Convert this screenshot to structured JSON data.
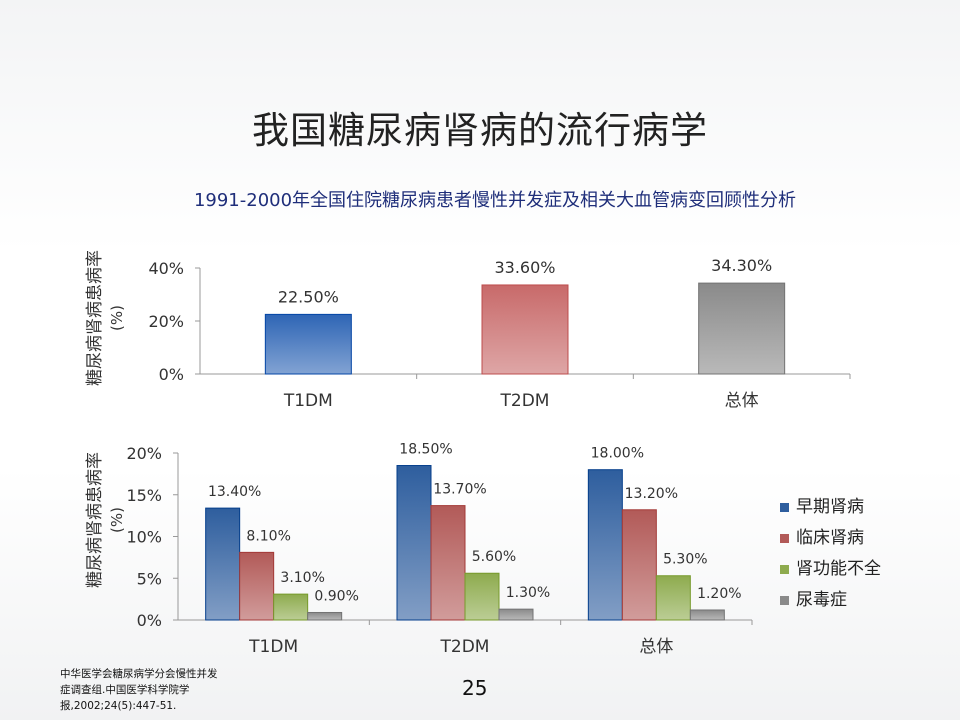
{
  "slide": {
    "title": "我国糖尿病肾病的流行病学",
    "subtitle": "1991-2000年全国住院糖尿病患者慢性并发症及相关大血管病变回顾性分析",
    "references": [
      "中华医学会糖尿病学分会慢性并发",
      "症调查组.中国医学科学院学",
      "报,2002;24(5):447-51."
    ],
    "page_number": "25"
  },
  "chart_data": [
    {
      "type": "bar",
      "ylabel": "糖尿病肾病患病率 (%)",
      "categories": [
        "T1DM",
        "T2DM",
        "总体"
      ],
      "values": [
        22.5,
        33.6,
        34.3
      ],
      "data_labels": [
        "22.50%",
        "33.60%",
        "34.30%"
      ],
      "yticks": [
        "0%",
        "20%",
        "40%"
      ],
      "ylim": [
        0,
        40
      ],
      "grid": false,
      "colors": [
        "#2e65b5",
        "#c86a6a",
        "#8a8a8a"
      ]
    },
    {
      "type": "bar",
      "ylabel": "糖尿病肾病患病率 (%)",
      "categories": [
        "T1DM",
        "T2DM",
        "总体"
      ],
      "series": [
        {
          "name": "早期肾病",
          "values": [
            13.4,
            18.5,
            18.0
          ],
          "labels": [
            "13.40%",
            "18.50%",
            "18.00%"
          ],
          "color": "#2e5e9e"
        },
        {
          "name": "临床肾病",
          "values": [
            8.1,
            13.7,
            13.2
          ],
          "labels": [
            "8.10%",
            "13.70%",
            "13.20%"
          ],
          "color": "#b25a58"
        },
        {
          "name": "肾功能不全",
          "values": [
            3.1,
            5.6,
            5.3
          ],
          "labels": [
            "3.10%",
            "5.60%",
            "5.30%"
          ],
          "color": "#8eab4e"
        },
        {
          "name": "尿毒症",
          "values": [
            0.9,
            1.3,
            1.2
          ],
          "labels": [
            "0.90%",
            "1.30%",
            "1.20%"
          ],
          "color": "#8a8a8a"
        }
      ],
      "yticks": [
        "0%",
        "5%",
        "10%",
        "15%",
        "20%"
      ],
      "ylim": [
        0,
        20
      ],
      "grid": false,
      "legend": "right"
    }
  ]
}
